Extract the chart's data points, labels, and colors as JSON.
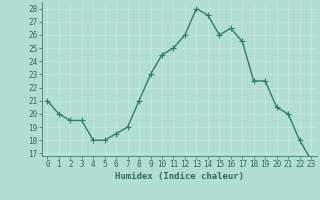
{
  "x": [
    0,
    1,
    2,
    3,
    4,
    5,
    6,
    7,
    8,
    9,
    10,
    11,
    12,
    13,
    14,
    15,
    16,
    17,
    18,
    19,
    20,
    21,
    22,
    23
  ],
  "y": [
    21,
    20,
    19.5,
    19.5,
    18,
    18,
    18.5,
    19,
    21,
    23,
    24.5,
    25,
    26,
    28,
    27.5,
    26,
    26.5,
    25.5,
    22.5,
    22.5,
    20.5,
    20,
    18,
    16.5
  ],
  "line_color": "#2e7d6e",
  "marker_color": "#2e7d6e",
  "bg_color": "#b2ddd4",
  "grid_color": "#c8e8e0",
  "xlabel": "Humidex (Indice chaleur)",
  "ylim": [
    16.8,
    28.5
  ],
  "xlim": [
    -0.5,
    23.5
  ],
  "yticks": [
    17,
    18,
    19,
    20,
    21,
    22,
    23,
    24,
    25,
    26,
    27,
    28
  ],
  "xticks": [
    0,
    1,
    2,
    3,
    4,
    5,
    6,
    7,
    8,
    9,
    10,
    11,
    12,
    13,
    14,
    15,
    16,
    17,
    18,
    19,
    20,
    21,
    22,
    23
  ],
  "font_color": "#2e6b5e",
  "line_width": 1.0,
  "marker_size": 2.5,
  "tick_fontsize": 5.5,
  "xlabel_fontsize": 6.5
}
